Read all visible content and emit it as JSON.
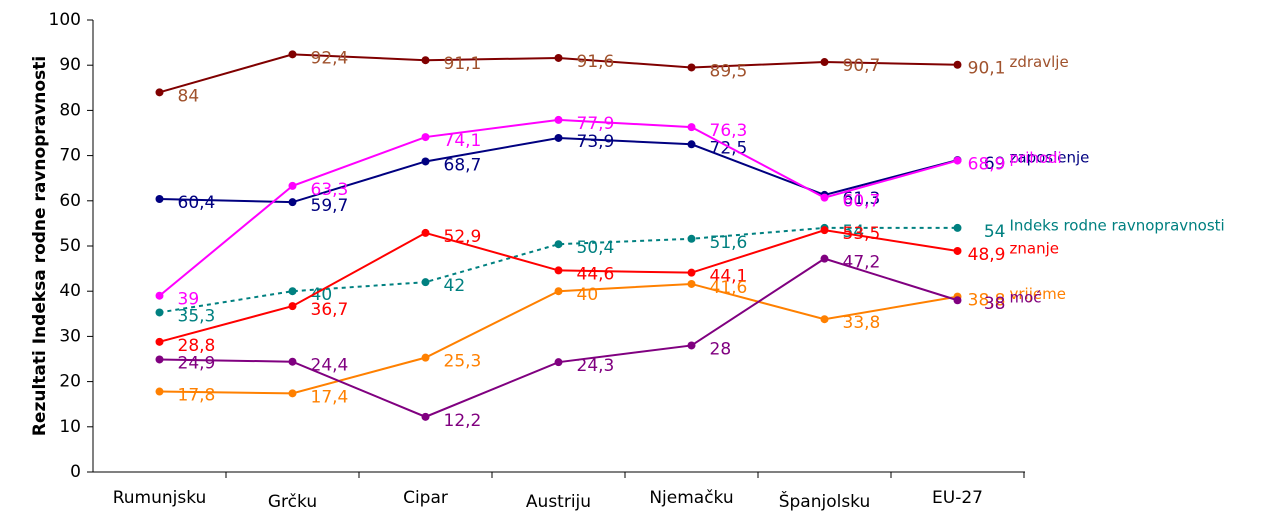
{
  "chart_data": {
    "type": "line",
    "y_label": "Rezultati Indeksa rodne ravnopravnosti",
    "categories": [
      "Rumunjsku",
      "Grčku",
      "Cipar",
      "Austriju",
      "Njemačku",
      "Španjolsku",
      "EU-27"
    ],
    "ylim": [
      0,
      100
    ],
    "yticks": [
      0,
      10,
      20,
      30,
      40,
      50,
      60,
      70,
      80,
      90,
      100
    ],
    "series": [
      {
        "name": "zdravlje",
        "color": "#800000",
        "label_color": "#a0522d",
        "values": [
          84,
          92.4,
          91.1,
          91.6,
          89.5,
          90.7,
          90.1
        ],
        "value_labels": [
          "84",
          "92,4",
          "91,1",
          "91,6",
          "89,5",
          "90,7",
          "90,1"
        ]
      },
      {
        "name": "zaposlenje",
        "color": "#000080",
        "label_color": "#000080",
        "values": [
          60.4,
          59.7,
          68.7,
          73.9,
          72.5,
          61.3,
          69
        ],
        "value_labels": [
          "60,4",
          "59,7",
          "68,7",
          "73,9",
          "72,5",
          "61,3",
          "69"
        ]
      },
      {
        "name": "prihodi",
        "color": "#ff00ff",
        "label_color": "#ff00ff",
        "values": [
          39,
          63.3,
          74.1,
          77.9,
          76.3,
          60.7,
          68.9
        ],
        "value_labels": [
          "39",
          "63,3",
          "74,1",
          "77,9",
          "76,3",
          "60,7",
          "68,9"
        ]
      },
      {
        "name": "Indeks rodne ravnopravnosti",
        "color": "#008080",
        "label_color": "#008080",
        "dashed": true,
        "values": [
          35.3,
          40,
          42,
          50.4,
          51.6,
          54,
          54
        ],
        "value_labels": [
          "35,3",
          "40",
          "42",
          "50,4",
          "51,6",
          "54",
          "54"
        ]
      },
      {
        "name": "znanje",
        "color": "#ff0000",
        "label_color": "#ff0000",
        "values": [
          28.8,
          36.7,
          52.9,
          44.6,
          44.1,
          53.5,
          48.9
        ],
        "value_labels": [
          "28,8",
          "36,7",
          "52,9",
          "44,6",
          "44,1",
          "53,5",
          "48,9"
        ]
      },
      {
        "name": "vrijeme",
        "color": "#ff8000",
        "label_color": "#ff8000",
        "values": [
          17.8,
          17.4,
          25.3,
          40,
          41.6,
          33.8,
          38.8
        ],
        "value_labels": [
          "17,8",
          "17,4",
          "25,3",
          "40",
          "41,6",
          "33,8",
          "38,8"
        ]
      },
      {
        "name": "moć",
        "color": "#800080",
        "label_color": "#800080",
        "values": [
          24.9,
          24.4,
          12.2,
          24.3,
          28,
          47.2,
          38
        ],
        "value_labels": [
          "24,9",
          "24,4",
          "12,2",
          "24,3",
          "28",
          "47,2",
          "38"
        ]
      }
    ]
  }
}
